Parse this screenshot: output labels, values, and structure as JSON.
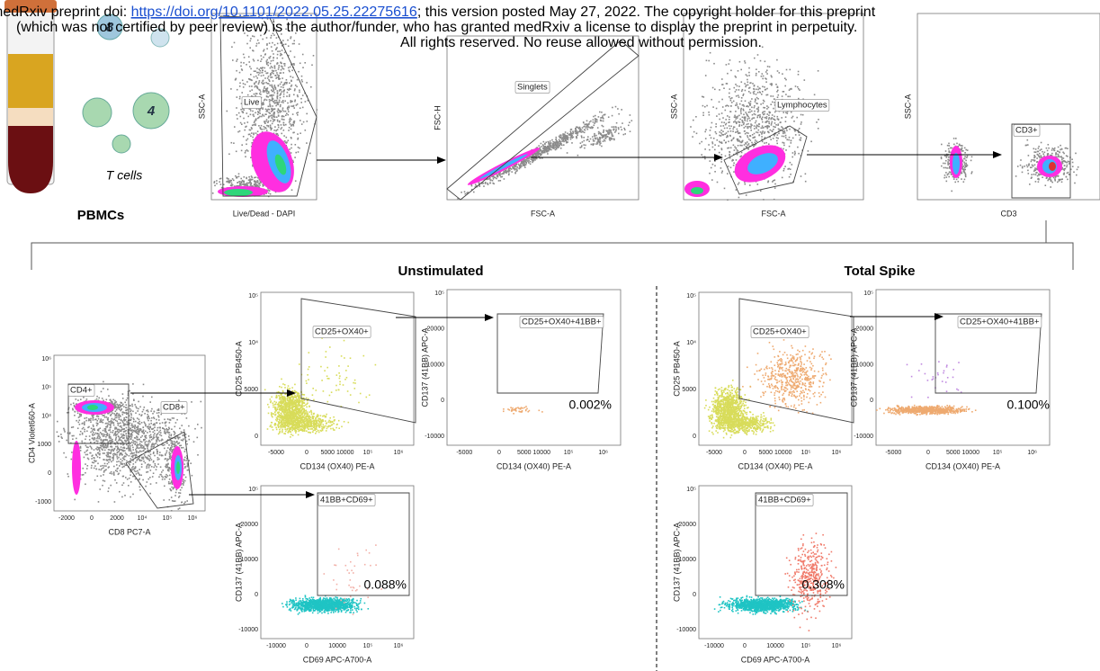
{
  "header": {
    "prefix": "medRxiv preprint doi: ",
    "doi": "https://doi.org/10.1101/2022.05.25.22275616",
    "suffix": "; this version posted May 27, 2022. The copyright holder for this preprint",
    "line2": "(which was not certified by peer review) is the author/funder, who has granted medRxiv a license to display the preprint in perpetuity.",
    "line3": "All rights reserved. No reuse allowed without permission."
  },
  "illustration": {
    "cell_a": "8",
    "cell_b": "4",
    "cells_label": "T cells",
    "sample": "PBMCs"
  },
  "top_panels": [
    {
      "x_label": "Live/Dead - DAPI",
      "y_label": "SSC-A",
      "gate": "Live"
    },
    {
      "x_label": "FSC-A",
      "y_label": "FSC-H",
      "gate": "Singlets"
    },
    {
      "x_label": "FSC-A",
      "y_label": "SSC-A",
      "gate": "Lymphocytes"
    },
    {
      "x_label": "CD3",
      "y_label": "SSC-A",
      "gate": "CD3+"
    }
  ],
  "cd4_cd8": {
    "x_label": "CD8 PC7-A",
    "y_label": "CD4 Violet660-A",
    "gates": [
      "CD4+",
      "CD8+"
    ],
    "x_ticks": [
      "-2000",
      "0",
      "2000",
      "10⁴",
      "10⁵",
      "10⁶"
    ],
    "y_ticks": [
      "10⁶",
      "10⁵",
      "10⁴",
      "1000",
      "0",
      "-1000"
    ]
  },
  "conditions": [
    {
      "title": "Unstimulated",
      "ox40": {
        "x_label": "CD134 (OX40) PE-A",
        "y_label": "CD25 PB450-A",
        "gate": "CD25+OX40+",
        "x_ticks": [
          "-5000",
          "0",
          "5000 10000",
          "10⁵",
          "10⁶"
        ],
        "y_ticks": [
          "10⁵",
          "10⁴",
          "5000",
          "0"
        ]
      },
      "cd137": {
        "x_label": "CD134 (OX40) PE-A",
        "y_label": "CD137 (41BB) APC-A",
        "gate": "CD25+OX40+41BB+",
        "percent": "0.002%",
        "x_ticks": [
          "-5000",
          "0",
          "5000 10000",
          "10⁵",
          "10⁶"
        ],
        "y_ticks": [
          "10⁵",
          "20000",
          "10000",
          "0",
          "-10000"
        ]
      },
      "cd69": {
        "x_label": "CD69 APC-A700-A",
        "y_label": "CD137 (41BB) APC-A",
        "gate": "41BB+CD69+",
        "percent": "0.088%",
        "x_ticks": [
          "-10000",
          "0",
          "10000",
          "10⁵",
          "10⁶"
        ],
        "y_ticks": [
          "10⁵",
          "20000",
          "10000",
          "0",
          "-10000"
        ]
      }
    },
    {
      "title": "Total Spike",
      "ox40": {
        "x_label": "CD134 (OX40) PE-A",
        "y_label": "CD25 PB450-A",
        "gate": "CD25+OX40+",
        "x_ticks": [
          "-5000",
          "0",
          "5000 10000",
          "10⁵",
          "10⁶"
        ],
        "y_ticks": [
          "10⁵",
          "10⁴",
          "5000",
          "0"
        ]
      },
      "cd137": {
        "x_label": "CD134 (OX40) PE-A",
        "y_label": "CD137 (41BB) APC-A",
        "gate": "CD25+OX40+41BB+",
        "percent": "0.100%",
        "x_ticks": [
          "-5000",
          "0",
          "5000 10000",
          "10⁵",
          "10⁶"
        ],
        "y_ticks": [
          "10⁵",
          "20000",
          "10000",
          "0",
          "-10000"
        ]
      },
      "cd69": {
        "x_label": "CD69 APC-A700-A",
        "y_label": "CD137 (41BB) APC-A",
        "gate": "41BB+CD69+",
        "percent": "0.308%",
        "x_ticks": [
          "-10000",
          "0",
          "10000",
          "10⁵",
          "10⁶"
        ],
        "y_ticks": [
          "10⁵",
          "20000",
          "10000",
          "0",
          "-10000"
        ]
      }
    }
  ]
}
